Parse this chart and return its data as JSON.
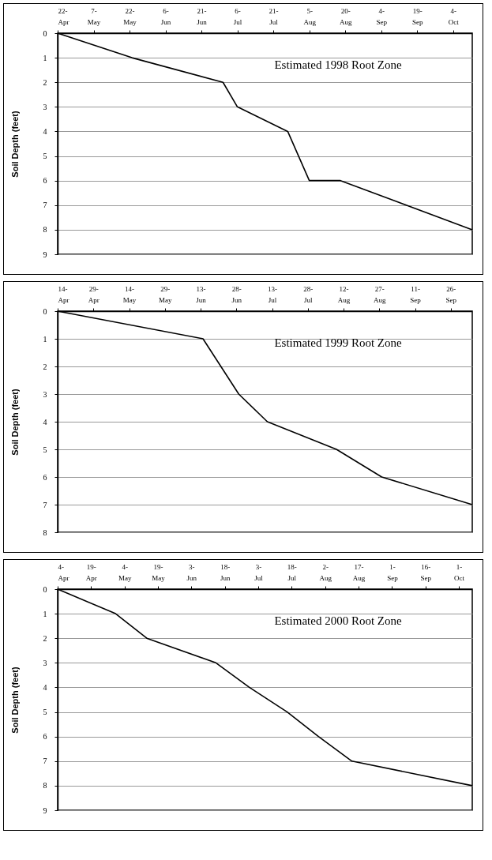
{
  "chart_data": [
    {
      "type": "line",
      "title": "Estimated 1998 Root Zone",
      "ylabel": "Soil Depth (feet)",
      "x": [
        "--04-22",
        "--05-23",
        "--06-30",
        "--07-06",
        "--07-27",
        "--08-05",
        "--08-18",
        "--10-12"
      ],
      "values": [
        0,
        1,
        2,
        3,
        4,
        6,
        6,
        8
      ],
      "color": "#000000",
      "xlim": [
        "--04-22",
        "--10-12"
      ],
      "xticks": [
        {
          "value": "--04-22",
          "label": "22-\nApr"
        },
        {
          "value": "--05-07",
          "label": "7-\nMay"
        },
        {
          "value": "--05-22",
          "label": "22-\nMay"
        },
        {
          "value": "--06-06",
          "label": "6-\nJun"
        },
        {
          "value": "--06-21",
          "label": "21-\nJun"
        },
        {
          "value": "--07-06",
          "label": "6-\nJul"
        },
        {
          "value": "--07-21",
          "label": "21-\nJul"
        },
        {
          "value": "--08-05",
          "label": "5-\nAug"
        },
        {
          "value": "--08-20",
          "label": "20-\nAug"
        },
        {
          "value": "--09-04",
          "label": "4-\nSep"
        },
        {
          "value": "--09-19",
          "label": "19-\nSep"
        },
        {
          "value": "--10-04",
          "label": "4-\nOct"
        }
      ],
      "ylim": [
        9,
        0
      ],
      "yticks": [
        0,
        1,
        2,
        3,
        4,
        5,
        6,
        7,
        8,
        9
      ],
      "grid": "y"
    },
    {
      "type": "line",
      "title": "Estimated 1999 Root Zone",
      "ylabel": "Soil Depth (feet)",
      "x": [
        "--04-14",
        "--06-14",
        "--06-29",
        "--07-11",
        "--08-09",
        "--08-28",
        "--10-05"
      ],
      "values": [
        0,
        1,
        3,
        4,
        5,
        6,
        7
      ],
      "color": "#000000",
      "xlim": [
        "--04-14",
        "--10-05"
      ],
      "xticks": [
        {
          "value": "--04-14",
          "label": "14-\nApr"
        },
        {
          "value": "--04-29",
          "label": "29-\nApr"
        },
        {
          "value": "--05-14",
          "label": "14-\nMay"
        },
        {
          "value": "--05-29",
          "label": "29-\nMay"
        },
        {
          "value": "--06-13",
          "label": "13-\nJun"
        },
        {
          "value": "--06-28",
          "label": "28-\nJun"
        },
        {
          "value": "--07-13",
          "label": "13-\nJul"
        },
        {
          "value": "--07-28",
          "label": "28-\nJul"
        },
        {
          "value": "--08-12",
          "label": "12-\nAug"
        },
        {
          "value": "--08-27",
          "label": "27-\nAug"
        },
        {
          "value": "--09-11",
          "label": "11-\nSep"
        },
        {
          "value": "--09-26",
          "label": "26-\nSep"
        }
      ],
      "ylim": [
        8,
        0
      ],
      "yticks": [
        0,
        1,
        2,
        3,
        4,
        5,
        6,
        7,
        8
      ],
      "grid": "y"
    },
    {
      "type": "line",
      "title": "Estimated 2000 Root Zone",
      "ylabel": "Soil Depth (feet)",
      "x": [
        "--04-04",
        "--04-30",
        "--05-14",
        "--06-14",
        "--06-29",
        "--07-16",
        "--07-30",
        "--08-14",
        "--10-07"
      ],
      "values": [
        0,
        1,
        2,
        3,
        4,
        5,
        6,
        7,
        8
      ],
      "color": "#000000",
      "xlim": [
        "--04-04",
        "--10-07"
      ],
      "xticks": [
        {
          "value": "--04-04",
          "label": "4-\nApr"
        },
        {
          "value": "--04-19",
          "label": "19-\nApr"
        },
        {
          "value": "--05-04",
          "label": "4-\nMay"
        },
        {
          "value": "--05-19",
          "label": "19-\nMay"
        },
        {
          "value": "--06-03",
          "label": "3-\nJun"
        },
        {
          "value": "--06-18",
          "label": "18-\nJun"
        },
        {
          "value": "--07-03",
          "label": "3-\nJul"
        },
        {
          "value": "--07-18",
          "label": "18-\nJul"
        },
        {
          "value": "--08-02",
          "label": "2-\nAug"
        },
        {
          "value": "--08-17",
          "label": "17-\nAug"
        },
        {
          "value": "--09-01",
          "label": "1-\nSep"
        },
        {
          "value": "--09-16",
          "label": "16-\nSep"
        },
        {
          "value": "--10-01",
          "label": "1-\nOct"
        }
      ],
      "ylim": [
        9,
        0
      ],
      "yticks": [
        0,
        1,
        2,
        3,
        4,
        5,
        6,
        7,
        8,
        9
      ],
      "grid": "y"
    }
  ]
}
